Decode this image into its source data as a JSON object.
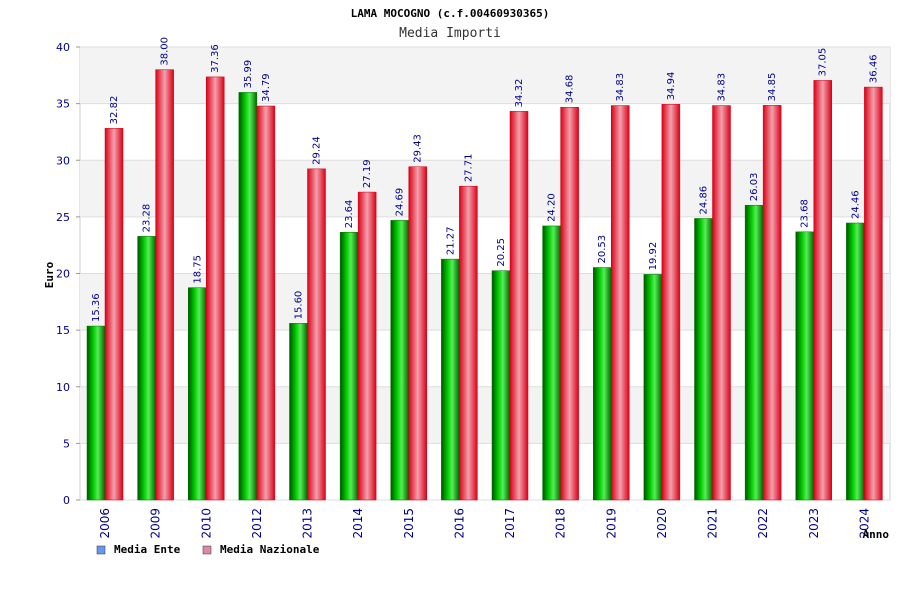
{
  "chart_data": {
    "type": "bar",
    "title": "LAMA MOCOGNO (c.f.00460930365)",
    "subtitle": "Media Importi",
    "xlabel": "Anno",
    "ylabel": "Euro",
    "ylim": [
      0,
      40
    ],
    "yticks": [
      "0",
      "5",
      "10",
      "15",
      "20",
      "25",
      "30",
      "35",
      "40"
    ],
    "grid": true,
    "legend_position": "bottom-left",
    "categories": [
      "2006",
      "2009",
      "2010",
      "2012",
      "2013",
      "2014",
      "2015",
      "2016",
      "2017",
      "2018",
      "2019",
      "2020",
      "2021",
      "2022",
      "2023",
      "2024"
    ],
    "series": [
      {
        "name": "Media Ente",
        "color": "#00aa00",
        "legend_color": "#6699ee",
        "values": [
          15.36,
          23.28,
          18.75,
          35.99,
          15.6,
          23.64,
          24.69,
          21.27,
          20.25,
          24.2,
          20.53,
          19.92,
          24.86,
          26.03,
          23.68,
          24.46
        ],
        "labels": [
          "15.36",
          "23.28",
          "18.75",
          "35.99",
          "15.60",
          "23.64",
          "24.69",
          "21.27",
          "20.25",
          "24.20",
          "20.53",
          "19.92",
          "24.86",
          "26.03",
          "23.68",
          "24.46"
        ]
      },
      {
        "name": "Media Nazionale",
        "color": "#e8001c",
        "legend_color": "#dd88aa",
        "values": [
          32.82,
          38.0,
          37.36,
          34.79,
          29.24,
          27.19,
          29.43,
          27.71,
          34.32,
          34.68,
          34.83,
          34.94,
          34.83,
          34.85,
          37.05,
          36.46
        ],
        "labels": [
          "32.82",
          "38.00",
          "37.36",
          "34.79",
          "29.24",
          "27.19",
          "29.43",
          "27.71",
          "34.32",
          "34.68",
          "34.83",
          "34.94",
          "34.83",
          "34.85",
          "37.05",
          "36.46"
        ]
      }
    ]
  }
}
